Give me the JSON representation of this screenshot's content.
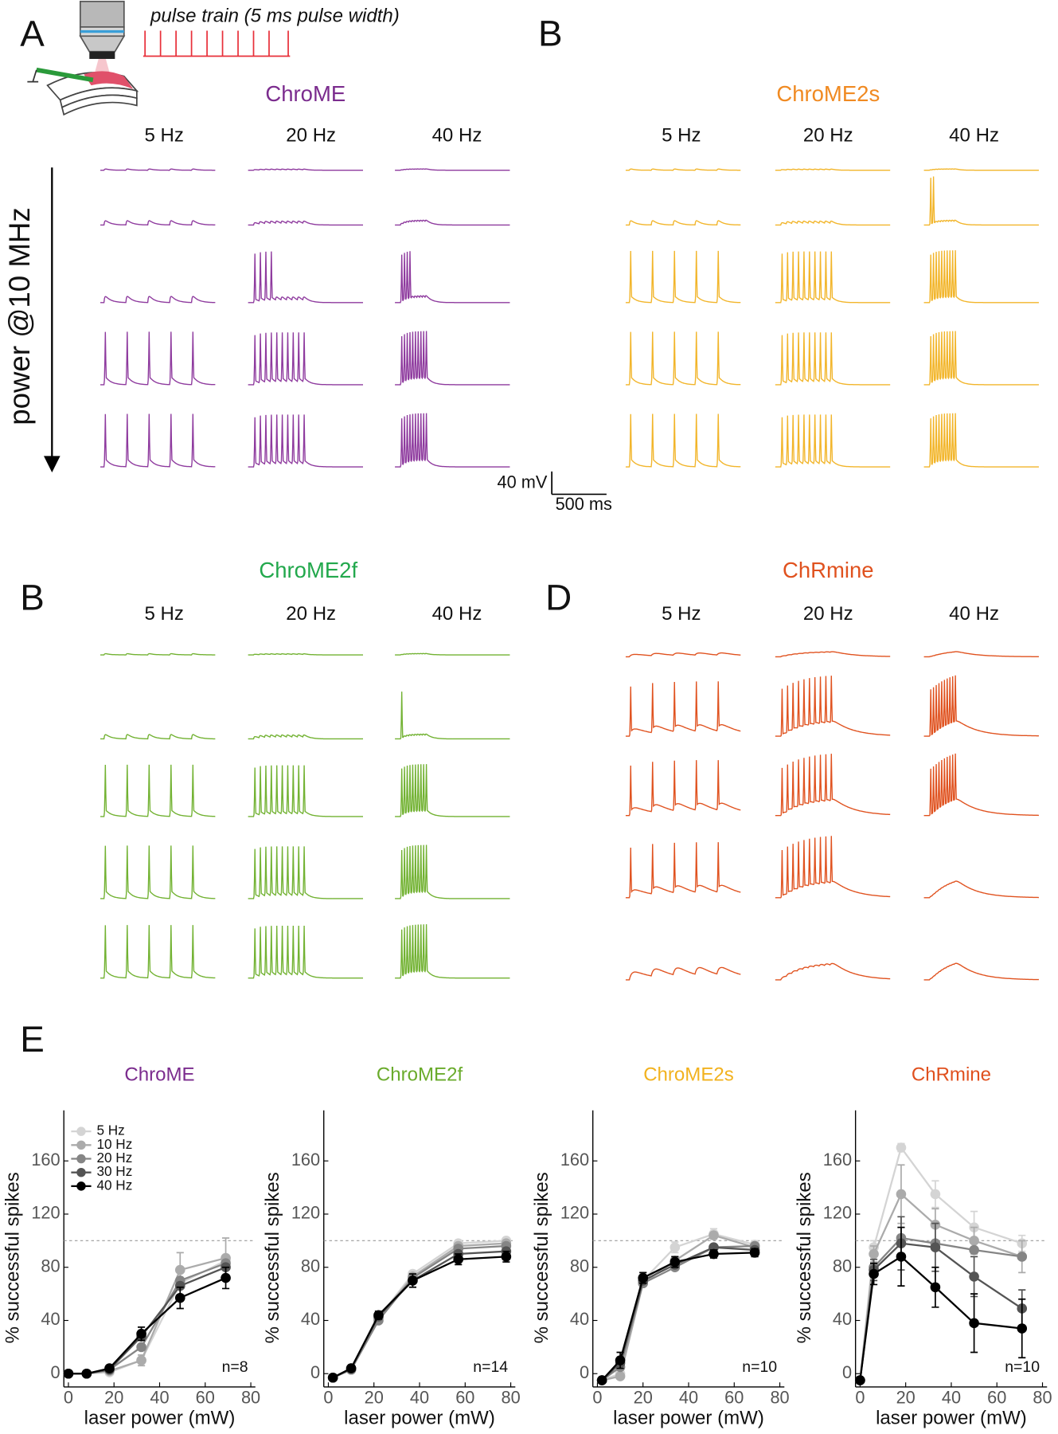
{
  "panels": [
    {
      "label": "A",
      "title": "ChroME",
      "title_color": "#7b2c8e",
      "trace_color": "#8e3a9e",
      "frequencies": [
        "5 Hz",
        "20 Hz",
        "40 Hz"
      ]
    },
    {
      "label": "B",
      "title": "ChroME2s",
      "title_color": "#f08a22",
      "trace_color": "#f2b52a",
      "frequencies": [
        "5 Hz",
        "20 Hz",
        "40 Hz"
      ]
    },
    {
      "label": "B",
      "title": "ChroME2f",
      "title_color": "#22a84c",
      "trace_color": "#72b232",
      "frequencies": [
        "5 Hz",
        "20 Hz",
        "40 Hz"
      ]
    },
    {
      "label": "D",
      "title": "ChRmine",
      "title_color": "#e0521f",
      "trace_color": "#e0521f",
      "frequencies": [
        "5 Hz",
        "20 Hz",
        "40 Hz"
      ]
    }
  ],
  "stimulus_label": "pulse train (5 ms pulse width)",
  "power_axis_label": "power @10 MHz",
  "scale_bar": {
    "voltage": "40 mV",
    "time": "500 ms"
  },
  "panel_e_label": "E",
  "chart_data": [
    {
      "type": "line",
      "title": "ChroME",
      "title_color": "#7b2c8e",
      "x_label": "laser power (mW)",
      "y_label": "% successful spikes",
      "xlim": [
        -2,
        82
      ],
      "ylim": [
        -10,
        198
      ],
      "xticks": [
        0,
        20,
        40,
        60,
        80
      ],
      "yticks": [
        0,
        40,
        80,
        120,
        160
      ],
      "reference_line": 100,
      "annotation": "n=8",
      "legend": true,
      "x": [
        0,
        8,
        18,
        32,
        49,
        69
      ],
      "series": [
        {
          "name": "5 Hz",
          "color": "#d4d4d4",
          "values": [
            0,
            0,
            1,
            10,
            68,
            85
          ]
        },
        {
          "name": "10 Hz",
          "color": "#ababab",
          "values": [
            0,
            0,
            2,
            10,
            78,
            87
          ],
          "errors": [
            0,
            0,
            1,
            4,
            13,
            15
          ]
        },
        {
          "name": "20 Hz",
          "color": "#858585",
          "values": [
            0,
            0,
            3,
            20,
            70,
            83
          ]
        },
        {
          "name": "30 Hz",
          "color": "#545454",
          "values": [
            0,
            0,
            3,
            28,
            66,
            80
          ]
        },
        {
          "name": "40 Hz",
          "color": "#000000",
          "values": [
            0,
            0,
            4,
            30,
            57,
            72
          ],
          "errors": [
            0,
            0,
            1,
            5,
            8,
            8
          ]
        }
      ]
    },
    {
      "type": "line",
      "title": "ChroME2f",
      "title_color": "#6aab2c",
      "x_label": "laser power (mW)",
      "y_label": "% successful spikes",
      "xlim": [
        -2,
        82
      ],
      "ylim": [
        -10,
        198
      ],
      "xticks": [
        0,
        20,
        40,
        60,
        80
      ],
      "yticks": [
        0,
        40,
        80,
        120,
        160
      ],
      "reference_line": 100,
      "annotation": "n=14",
      "legend": false,
      "x": [
        2,
        10,
        22,
        37,
        57,
        78
      ],
      "series": [
        {
          "color": "#d4d4d4",
          "values": [
            -3,
            3,
            42,
            75,
            98,
            100
          ]
        },
        {
          "color": "#ababab",
          "values": [
            -3,
            3,
            42,
            73,
            96,
            98
          ]
        },
        {
          "color": "#858585",
          "values": [
            -3,
            3,
            40,
            72,
            94,
            96
          ]
        },
        {
          "color": "#545454",
          "values": [
            -3,
            4,
            43,
            70,
            90,
            92
          ]
        },
        {
          "color": "#000000",
          "values": [
            -3,
            4,
            44,
            70,
            86,
            88
          ],
          "errors": [
            1,
            2,
            3,
            5,
            4,
            4
          ]
        }
      ]
    },
    {
      "type": "line",
      "title": "ChroME2s",
      "title_color": "#f2b21f",
      "x_label": "laser power (mW)",
      "y_label": "% successful spikes",
      "xlim": [
        -2,
        82
      ],
      "ylim": [
        -10,
        198
      ],
      "xticks": [
        0,
        20,
        40,
        60,
        80
      ],
      "yticks": [
        0,
        40,
        80,
        120,
        160
      ],
      "reference_line": 100,
      "annotation": "n=10",
      "legend": false,
      "x": [
        2,
        10,
        20,
        34,
        51,
        69
      ],
      "series": [
        {
          "color": "#d4d4d4",
          "values": [
            -5,
            0,
            70,
            95,
            105,
            97
          ],
          "errors": [
            1,
            2,
            4,
            4,
            4,
            3
          ]
        },
        {
          "color": "#ababab",
          "values": [
            -5,
            -2,
            68,
            85,
            104,
            95
          ]
        },
        {
          "color": "#858585",
          "values": [
            -5,
            5,
            68,
            80,
            95,
            96
          ]
        },
        {
          "color": "#545454",
          "values": [
            -5,
            8,
            70,
            82,
            95,
            93
          ]
        },
        {
          "color": "#000000",
          "values": [
            -5,
            10,
            72,
            84,
            90,
            91
          ],
          "errors": [
            1,
            6,
            4,
            4,
            3,
            3
          ]
        }
      ]
    },
    {
      "type": "line",
      "title": "ChRmine",
      "title_color": "#e0501e",
      "x_label": "laser power (mW)",
      "y_label": "% successful spikes",
      "xlim": [
        -2,
        82
      ],
      "ylim": [
        -10,
        198
      ],
      "xticks": [
        0,
        20,
        40,
        60,
        80
      ],
      "yticks": [
        0,
        40,
        80,
        120,
        160
      ],
      "reference_line": 100,
      "annotation": "n=10",
      "legend": false,
      "x": [
        0,
        6,
        18,
        33,
        50,
        71
      ],
      "series": [
        {
          "color": "#d4d4d4",
          "values": [
            -5,
            95,
            170,
            135,
            110,
            98
          ],
          "errors": [
            1,
            5,
            3,
            10,
            12,
            6
          ]
        },
        {
          "color": "#ababab",
          "values": [
            -5,
            90,
            135,
            112,
            100,
            88
          ],
          "errors": [
            1,
            6,
            22,
            12,
            10,
            12
          ]
        },
        {
          "color": "#858585",
          "values": [
            -5,
            80,
            102,
            98,
            93,
            88
          ]
        },
        {
          "color": "#545454",
          "values": [
            -5,
            78,
            98,
            95,
            73,
            49
          ],
          "errors": [
            1,
            8,
            20,
            18,
            15,
            14
          ]
        },
        {
          "color": "#000000",
          "values": [
            -5,
            75,
            88,
            65,
            38,
            34
          ],
          "errors": [
            1,
            8,
            22,
            15,
            22,
            22
          ]
        }
      ]
    }
  ]
}
